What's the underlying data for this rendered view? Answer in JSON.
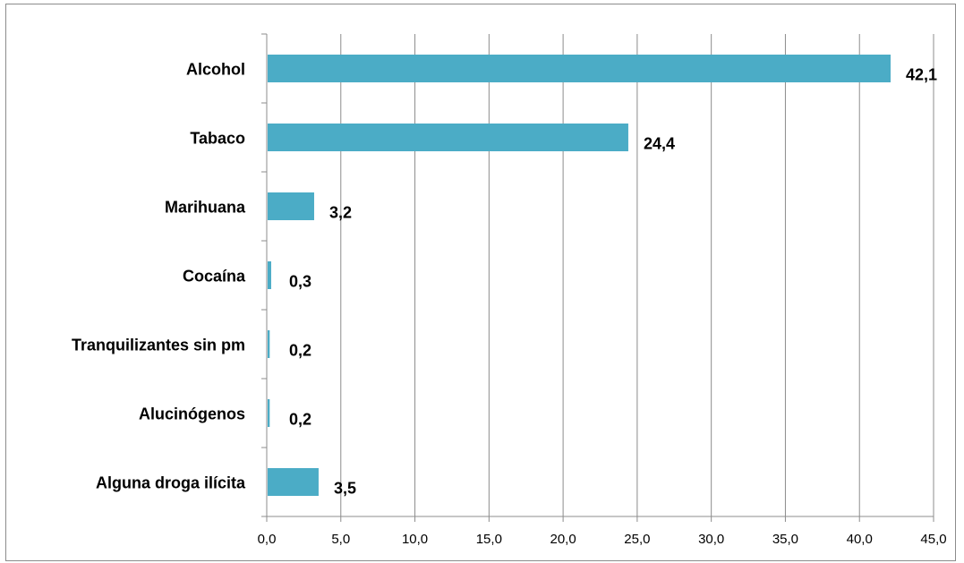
{
  "chart_data": {
    "type": "bar",
    "orientation": "horizontal",
    "categories": [
      "Alcohol",
      "Tabaco",
      "Marihuana",
      "Cocaína",
      "Tranquilizantes sin pm",
      "Alucinógenos",
      "Alguna droga ilícita"
    ],
    "values": [
      42.1,
      24.4,
      3.2,
      0.3,
      0.2,
      0.2,
      3.5
    ],
    "value_labels": [
      "42,1",
      "24,4",
      "3,2",
      "0,3",
      "0,2",
      "0,2",
      "3,5"
    ],
    "x_ticks": [
      "0,0",
      "5,0",
      "10,0",
      "15,0",
      "20,0",
      "25,0",
      "30,0",
      "35,0",
      "40,0",
      "45,0"
    ],
    "xlim": [
      0,
      45
    ],
    "title": "",
    "xlabel": "",
    "ylabel": "",
    "grid": "vertical",
    "legend": "none",
    "bar_color": "#4bacc6",
    "grid_color": "#8c8c8c"
  }
}
